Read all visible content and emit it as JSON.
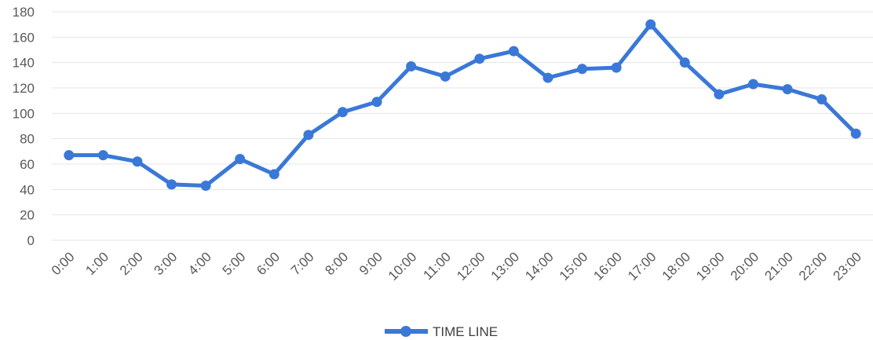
{
  "chart_data": {
    "type": "line",
    "categories": [
      "0:00",
      "1:00",
      "2:00",
      "3:00",
      "4:00",
      "5:00",
      "6:00",
      "7:00",
      "8:00",
      "9:00",
      "10:00",
      "11:00",
      "12:00",
      "13:00",
      "14:00",
      "15:00",
      "16:00",
      "17:00",
      "18:00",
      "19:00",
      "20:00",
      "21:00",
      "22:00",
      "23:00"
    ],
    "series": [
      {
        "name": "TIME LINE",
        "values": [
          67,
          67,
          62,
          44,
          43,
          64,
          52,
          83,
          101,
          109,
          137,
          129,
          143,
          149,
          128,
          135,
          136,
          170,
          140,
          115,
          123,
          119,
          111,
          84
        ],
        "color": "#3a78d8"
      }
    ],
    "ylim": [
      0,
      180
    ],
    "yticks": [
      "0",
      "20",
      "40",
      "60",
      "80",
      "100",
      "120",
      "140",
      "160",
      "180"
    ],
    "grid": true,
    "legend": "bottom-center",
    "title": "",
    "xlabel": "",
    "ylabel": ""
  }
}
